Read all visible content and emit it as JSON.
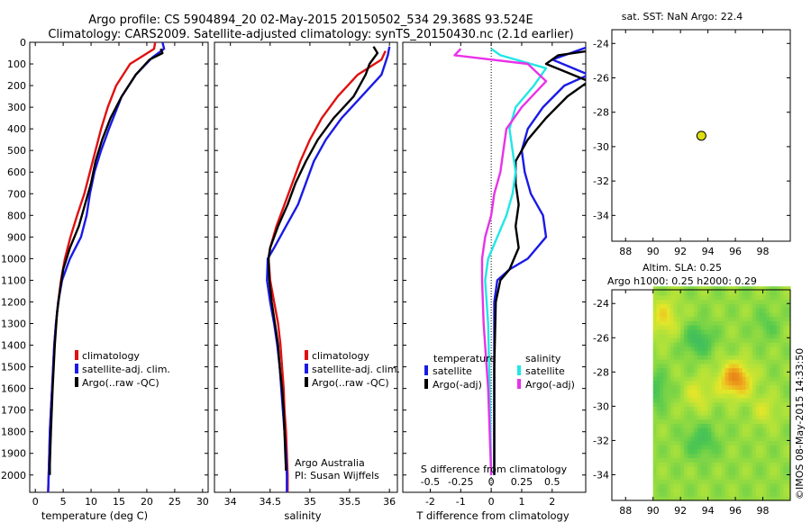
{
  "title_line1": "Argo profile: CS 5904894_20 02-May-2015 20150502_534 29.368S 93.524E",
  "title_line2": "Climatology: CARS2009. Satellite-adjusted climatology: synTS_20150430.nc (2.1d earlier)",
  "colors": {
    "climatology": "#e01010",
    "satellite": "#1a1ae6",
    "argo": "#000000",
    "argo_sal": "#e832e8",
    "sat_sal": "#22e6e6",
    "marker": "#dede10"
  },
  "chart_data": [
    {
      "type": "line",
      "name": "temperature",
      "xlabel": "temperature (deg C)",
      "ylabel": "",
      "xlim": [
        -1,
        31
      ],
      "ylim": [
        2080,
        0
      ],
      "xticks": [
        "0",
        "5",
        "10",
        "15",
        "20",
        "25",
        "30"
      ],
      "yticks": [
        "0",
        "100",
        "200",
        "300",
        "400",
        "500",
        "600",
        "700",
        "800",
        "900",
        "1000",
        "1100",
        "1200",
        "1300",
        "1400",
        "1500",
        "1600",
        "1700",
        "1800",
        "1900",
        "2000"
      ],
      "legend": [
        "climatology",
        "satellite-adj. clim.",
        "Argo(..raw -QC)"
      ],
      "series": [
        {
          "name": "climatology",
          "color": "red",
          "points": [
            [
              21.5,
              0
            ],
            [
              21.3,
              30
            ],
            [
              19.5,
              60
            ],
            [
              17,
              100
            ],
            [
              14.5,
              200
            ],
            [
              13,
              300
            ],
            [
              11.8,
              400
            ],
            [
              10.8,
              500
            ],
            [
              9.8,
              600
            ],
            [
              8.8,
              700
            ],
            [
              7.5,
              800
            ],
            [
              6.3,
              900
            ],
            [
              5.3,
              1000
            ],
            [
              4.6,
              1100
            ],
            [
              4.1,
              1200
            ],
            [
              3.7,
              1300
            ],
            [
              3.4,
              1400
            ],
            [
              3.2,
              1500
            ],
            [
              3.0,
              1600
            ],
            [
              2.8,
              1700
            ],
            [
              2.6,
              1800
            ],
            [
              2.5,
              1900
            ],
            [
              2.4,
              2000
            ],
            [
              2.3,
              2080
            ]
          ]
        },
        {
          "name": "satellite-adj. clim.",
          "color": "blue",
          "points": [
            [
              22.8,
              0
            ],
            [
              23.1,
              30
            ],
            [
              21,
              70
            ],
            [
              18,
              150
            ],
            [
              15.5,
              250
            ],
            [
              13.2,
              400
            ],
            [
              11.8,
              500
            ],
            [
              10.6,
              600
            ],
            [
              9.8,
              700
            ],
            [
              9.2,
              800
            ],
            [
              8.2,
              900
            ],
            [
              6.2,
              1000
            ],
            [
              4.8,
              1100
            ],
            [
              4.1,
              1200
            ],
            [
              3.7,
              1300
            ],
            [
              3.4,
              1400
            ],
            [
              3.2,
              1500
            ],
            [
              3.0,
              1600
            ],
            [
              2.8,
              1700
            ],
            [
              2.6,
              1800
            ],
            [
              2.5,
              1900
            ],
            [
              2.4,
              2000
            ],
            [
              2.3,
              2080
            ]
          ]
        },
        {
          "name": "Argo(..raw -QC)",
          "color": "black",
          "points": [
            [
              22.5,
              30
            ],
            [
              22.8,
              50
            ],
            [
              20.5,
              80
            ],
            [
              18,
              150
            ],
            [
              15.5,
              250
            ],
            [
              13.5,
              350
            ],
            [
              12,
              450
            ],
            [
              10.8,
              550
            ],
            [
              10,
              650
            ],
            [
              8.9,
              750
            ],
            [
              7.8,
              850
            ],
            [
              6.2,
              950
            ],
            [
              5,
              1050
            ],
            [
              4.4,
              1150
            ],
            [
              3.9,
              1250
            ],
            [
              3.5,
              1400
            ],
            [
              3.1,
              1600
            ],
            [
              2.8,
              1800
            ],
            [
              2.6,
              1950
            ],
            [
              2.6,
              2000
            ]
          ]
        }
      ]
    },
    {
      "type": "line",
      "name": "salinity",
      "xlabel": "salinity",
      "xlim": [
        33.8,
        36.1
      ],
      "ylim": [
        2080,
        0
      ],
      "xticks": [
        "34",
        "34.5",
        "35",
        "35.5",
        "36"
      ],
      "legend": [
        "climatology",
        "satellite-adj. clim.",
        "Argo(..raw -QC)"
      ],
      "series": [
        {
          "name": "climatology",
          "color": "red",
          "points": [
            [
              35.95,
              40
            ],
            [
              35.9,
              80
            ],
            [
              35.6,
              150
            ],
            [
              35.35,
              250
            ],
            [
              35.15,
              350
            ],
            [
              35.0,
              450
            ],
            [
              34.88,
              550
            ],
            [
              34.78,
              650
            ],
            [
              34.68,
              750
            ],
            [
              34.58,
              850
            ],
            [
              34.5,
              950
            ],
            [
              34.48,
              1000
            ],
            [
              34.5,
              1100
            ],
            [
              34.55,
              1200
            ],
            [
              34.6,
              1300
            ],
            [
              34.63,
              1400
            ],
            [
              34.65,
              1500
            ],
            [
              34.67,
              1600
            ],
            [
              34.68,
              1700
            ],
            [
              34.7,
              1800
            ],
            [
              34.71,
              1900
            ],
            [
              34.72,
              2000
            ],
            [
              34.72,
              2080
            ]
          ]
        },
        {
          "name": "satellite-adj. clim.",
          "color": "blue",
          "points": [
            [
              36.0,
              20
            ],
            [
              35.98,
              60
            ],
            [
              35.9,
              150
            ],
            [
              35.65,
              250
            ],
            [
              35.4,
              350
            ],
            [
              35.2,
              450
            ],
            [
              35.05,
              550
            ],
            [
              34.95,
              650
            ],
            [
              34.85,
              750
            ],
            [
              34.7,
              850
            ],
            [
              34.55,
              950
            ],
            [
              34.47,
              1000
            ],
            [
              34.46,
              1100
            ],
            [
              34.5,
              1200
            ],
            [
              34.55,
              1300
            ],
            [
              34.59,
              1400
            ],
            [
              34.62,
              1500
            ],
            [
              34.64,
              1600
            ],
            [
              34.66,
              1700
            ],
            [
              34.68,
              1800
            ],
            [
              34.7,
              1900
            ],
            [
              34.71,
              2000
            ],
            [
              34.71,
              2080
            ]
          ]
        },
        {
          "name": "Argo(..raw -QC)",
          "color": "black",
          "points": [
            [
              35.8,
              20
            ],
            [
              35.85,
              50
            ],
            [
              35.75,
              100
            ],
            [
              35.7,
              150
            ],
            [
              35.55,
              250
            ],
            [
              35.3,
              350
            ],
            [
              35.1,
              450
            ],
            [
              34.95,
              550
            ],
            [
              34.82,
              650
            ],
            [
              34.72,
              750
            ],
            [
              34.6,
              850
            ],
            [
              34.5,
              950
            ],
            [
              34.48,
              1000
            ],
            [
              34.49,
              1100
            ],
            [
              34.52,
              1200
            ],
            [
              34.56,
              1300
            ],
            [
              34.6,
              1400
            ],
            [
              34.62,
              1500
            ],
            [
              34.65,
              1600
            ],
            [
              34.67,
              1700
            ],
            [
              34.68,
              1800
            ],
            [
              34.69,
              1900
            ],
            [
              34.7,
              1980
            ]
          ]
        }
      ]
    },
    {
      "type": "line",
      "name": "difference",
      "xlabel": "T difference from climatology",
      "xlabel_top": "S difference from climatology",
      "xlim": [
        -2.9,
        3.1
      ],
      "ylim": [
        2080,
        0
      ],
      "xticks_bottom": [
        "-2",
        "-1",
        "0",
        "1",
        "2"
      ],
      "xticks_top": [
        "-0.5",
        "-0.25",
        "0",
        "0.25",
        "0.5"
      ],
      "legend_headers": [
        "temperature",
        "salinity"
      ],
      "legend_entries": [
        "satellite",
        "Argo(-adj)",
        "satellite",
        "Argo(-adj)"
      ],
      "series": [
        {
          "name": "temperature satellite",
          "color": "blue",
          "points": [
            [
              3.2,
              20
            ],
            [
              2.0,
              80
            ],
            [
              3.2,
              150
            ],
            [
              2.4,
              200
            ],
            [
              1.7,
              300
            ],
            [
              1.2,
              400
            ],
            [
              1.0,
              500
            ],
            [
              1.1,
              600
            ],
            [
              1.3,
              700
            ],
            [
              1.7,
              800
            ],
            [
              1.8,
              900
            ],
            [
              1.2,
              1000
            ],
            [
              0.6,
              1050
            ],
            [
              0.2,
              1100
            ],
            [
              0.1,
              1200
            ],
            [
              0.1,
              1500
            ],
            [
              0.1,
              2000
            ]
          ]
        },
        {
          "name": "temperature Argo(-adj)",
          "color": "black",
          "points": [
            [
              3.2,
              40
            ],
            [
              2.2,
              60
            ],
            [
              1.8,
              100
            ],
            [
              3.2,
              180
            ],
            [
              2.5,
              250
            ],
            [
              1.8,
              350
            ],
            [
              1.2,
              450
            ],
            [
              0.8,
              550
            ],
            [
              0.8,
              650
            ],
            [
              0.9,
              750
            ],
            [
              0.8,
              850
            ],
            [
              0.9,
              950
            ],
            [
              0.6,
              1050
            ],
            [
              0.3,
              1100
            ],
            [
              0.15,
              1200
            ],
            [
              0.1,
              1500
            ],
            [
              0.1,
              2000
            ]
          ]
        },
        {
          "name": "salinity satellite",
          "color": "cyan",
          "points": [
            [
              0.0,
              30
            ],
            [
              0.3,
              60
            ],
            [
              1.8,
              120
            ],
            [
              1.4,
              200
            ],
            [
              0.8,
              300
            ],
            [
              0.6,
              400
            ],
            [
              0.7,
              500
            ],
            [
              0.8,
              600
            ],
            [
              0.7,
              700
            ],
            [
              0.5,
              800
            ],
            [
              0.2,
              900
            ],
            [
              -0.1,
              1000
            ],
            [
              -0.2,
              1100
            ],
            [
              -0.1,
              1300
            ],
            [
              -0.05,
              1600
            ],
            [
              0.0,
              2000
            ]
          ]
        },
        {
          "name": "salinity Argo(-adj)",
          "color": "magenta",
          "points": [
            [
              -1.0,
              30
            ],
            [
              -1.2,
              60
            ],
            [
              1.2,
              100
            ],
            [
              1.8,
              180
            ],
            [
              1.0,
              300
            ],
            [
              0.5,
              400
            ],
            [
              0.4,
              500
            ],
            [
              0.3,
              600
            ],
            [
              0.1,
              700
            ],
            [
              0.0,
              800
            ],
            [
              -0.2,
              900
            ],
            [
              -0.3,
              1000
            ],
            [
              -0.3,
              1100
            ],
            [
              -0.25,
              1300
            ],
            [
              -0.1,
              1600
            ],
            [
              0.0,
              2000
            ]
          ]
        }
      ]
    },
    {
      "type": "scatter",
      "name": "sst-map",
      "title": "sat. SST: NaN Argo: 22.4",
      "xlim": [
        87,
        100
      ],
      "ylim": [
        -35.5,
        -23.2
      ],
      "xticks": [
        "88",
        "90",
        "92",
        "94",
        "96",
        "98"
      ],
      "yticks": [
        "-24",
        "-26",
        "-28",
        "-30",
        "-32",
        "-34"
      ],
      "points": [
        [
          93.524,
          -29.368
        ]
      ]
    },
    {
      "type": "heatmap",
      "name": "sla-map",
      "title_line1": "Altim. SLA: 0.25",
      "title_line2": "Argo h1000: 0.25 h2000: 0.29",
      "xlim": [
        87,
        100
      ],
      "ylim": [
        -35.5,
        -23.2
      ],
      "xticks": [
        "88",
        "90",
        "92",
        "94",
        "96",
        "98"
      ],
      "yticks": [
        "-24",
        "-26",
        "-28",
        "-30",
        "-32",
        "-34"
      ],
      "data_x_start": 90
    }
  ],
  "credits": {
    "argo_line1": "Argo Australia",
    "argo_line2": "PI: Susan Wijffels",
    "imos": "©IMOS 08-May-2015 14:33:50"
  }
}
